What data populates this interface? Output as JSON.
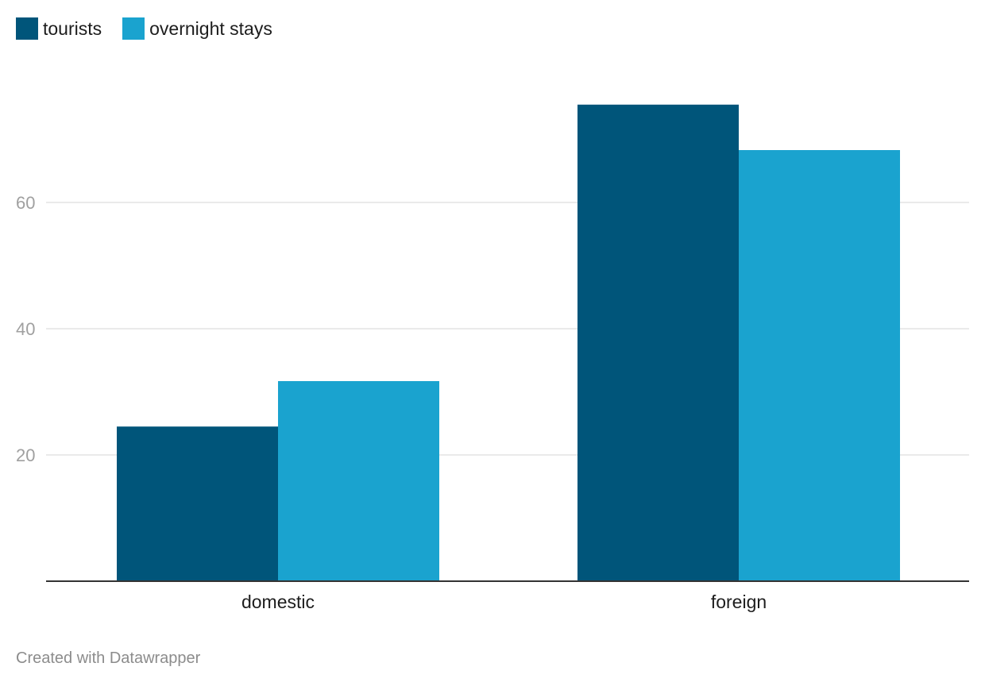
{
  "chart_data": {
    "type": "bar",
    "categories": [
      "domestic",
      "foreign"
    ],
    "series": [
      {
        "name": "tourists",
        "color": "#00557a",
        "values": [
          24.5,
          75.5
        ]
      },
      {
        "name": "overnight stays",
        "color": "#1aa3cf",
        "values": [
          31.7,
          68.3
        ]
      }
    ],
    "yticks": [
      20,
      40,
      60
    ],
    "ylim": [
      0,
      80
    ],
    "grid": true,
    "legend_position": "top-left"
  },
  "footer": {
    "credit": "Created with Datawrapper"
  }
}
